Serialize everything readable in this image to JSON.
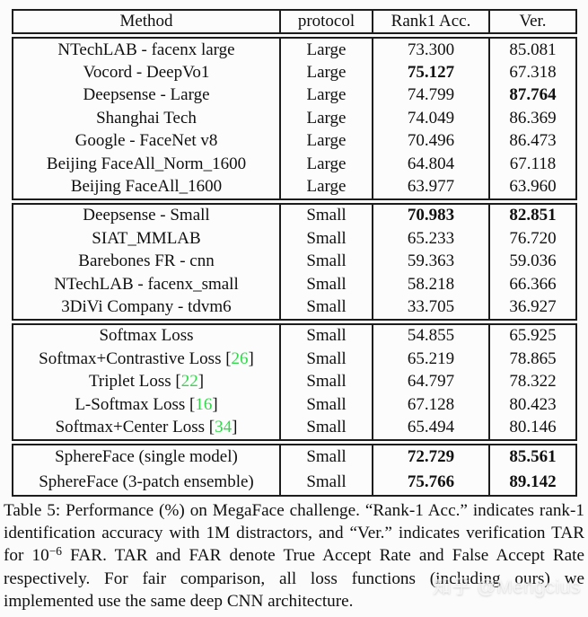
{
  "colors": {
    "citation_green": "#32d74b",
    "table_border": "#1d1d1d"
  },
  "table": {
    "header": {
      "method": "Method",
      "protocol": "protocol",
      "rank1": "Rank1 Acc.",
      "ver": "Ver."
    },
    "sections": [
      {
        "rows": [
          {
            "method": "NTechLAB - facenx large",
            "protocol": "Large",
            "rank1": "73.300",
            "ver": "85.081"
          },
          {
            "method": "Vocord - DeepVo1",
            "protocol": "Large",
            "rank1": "75.127",
            "ver": "67.318",
            "rank1_bold": true
          },
          {
            "method": "Deepsense - Large",
            "protocol": "Large",
            "rank1": "74.799",
            "ver": "87.764",
            "ver_bold": true
          },
          {
            "method": "Shanghai Tech",
            "protocol": "Large",
            "rank1": "74.049",
            "ver": "86.369"
          },
          {
            "method": "Google - FaceNet v8",
            "protocol": "Large",
            "rank1": "70.496",
            "ver": "86.473"
          },
          {
            "method": "Beijing FaceAll_Norm_1600",
            "protocol": "Large",
            "rank1": "64.804",
            "ver": "67.118"
          },
          {
            "method": "Beijing FaceAll_1600",
            "protocol": "Large",
            "rank1": "63.977",
            "ver": "63.960"
          }
        ]
      },
      {
        "rows": [
          {
            "method": "Deepsense - Small",
            "protocol": "Small",
            "rank1": "70.983",
            "ver": "82.851",
            "rank1_bold": true,
            "ver_bold": true
          },
          {
            "method": "SIAT_MMLAB",
            "protocol": "Small",
            "rank1": "65.233",
            "ver": "76.720"
          },
          {
            "method": "Barebones FR - cnn",
            "protocol": "Small",
            "rank1": "59.363",
            "ver": "59.036"
          },
          {
            "method": "NTechLAB - facenx_small",
            "protocol": "Small",
            "rank1": "58.218",
            "ver": "66.366"
          },
          {
            "method": "3DiVi Company - tdvm6",
            "protocol": "Small",
            "rank1": "33.705",
            "ver": "36.927"
          }
        ]
      },
      {
        "rows": [
          {
            "method": "Softmax Loss",
            "protocol": "Small",
            "rank1": "54.855",
            "ver": "65.925"
          },
          {
            "method_pre": "Softmax+Contrastive Loss [",
            "cite": "26",
            "method_post": "]",
            "protocol": "Small",
            "rank1": "65.219",
            "ver": "78.865"
          },
          {
            "method_pre": "Triplet Loss [",
            "cite": "22",
            "method_post": "]",
            "protocol": "Small",
            "rank1": "64.797",
            "ver": "78.322"
          },
          {
            "method_pre": "L-Softmax Loss [",
            "cite": "16",
            "method_post": "]",
            "protocol": "Small",
            "rank1": "67.128",
            "ver": "80.423"
          },
          {
            "method_pre": "Softmax+Center Loss [",
            "cite": "34",
            "method_post": "]",
            "protocol": "Small",
            "rank1": "65.494",
            "ver": "80.146"
          }
        ]
      },
      {
        "rows": [
          {
            "method": "SphereFace (single model)",
            "protocol": "Small",
            "rank1": "72.729",
            "ver": "85.561",
            "rank1_bold": true,
            "ver_bold": true
          },
          {
            "method": "SphereFace (3-patch ensemble)",
            "protocol": "Small",
            "rank1": "75.766",
            "ver": "89.142",
            "rank1_bold": true,
            "ver_bold": true
          }
        ]
      }
    ]
  },
  "caption": {
    "part1": "Table 5: Performance (%) on MegaFace challenge. “Rank-1 Acc.” indicates rank-1 identification accuracy with 1M distractors, and “Ver.” indicates verification TAR for 10",
    "sup": "−6",
    "part2": " FAR. TAR and FAR denote True Accept Rate and False Accept Rate respectively. For fair comparison, all loss functions (including ours) we implemented use the same deep CNN architecture."
  },
  "watermark": "知乎 @Mengcius"
}
